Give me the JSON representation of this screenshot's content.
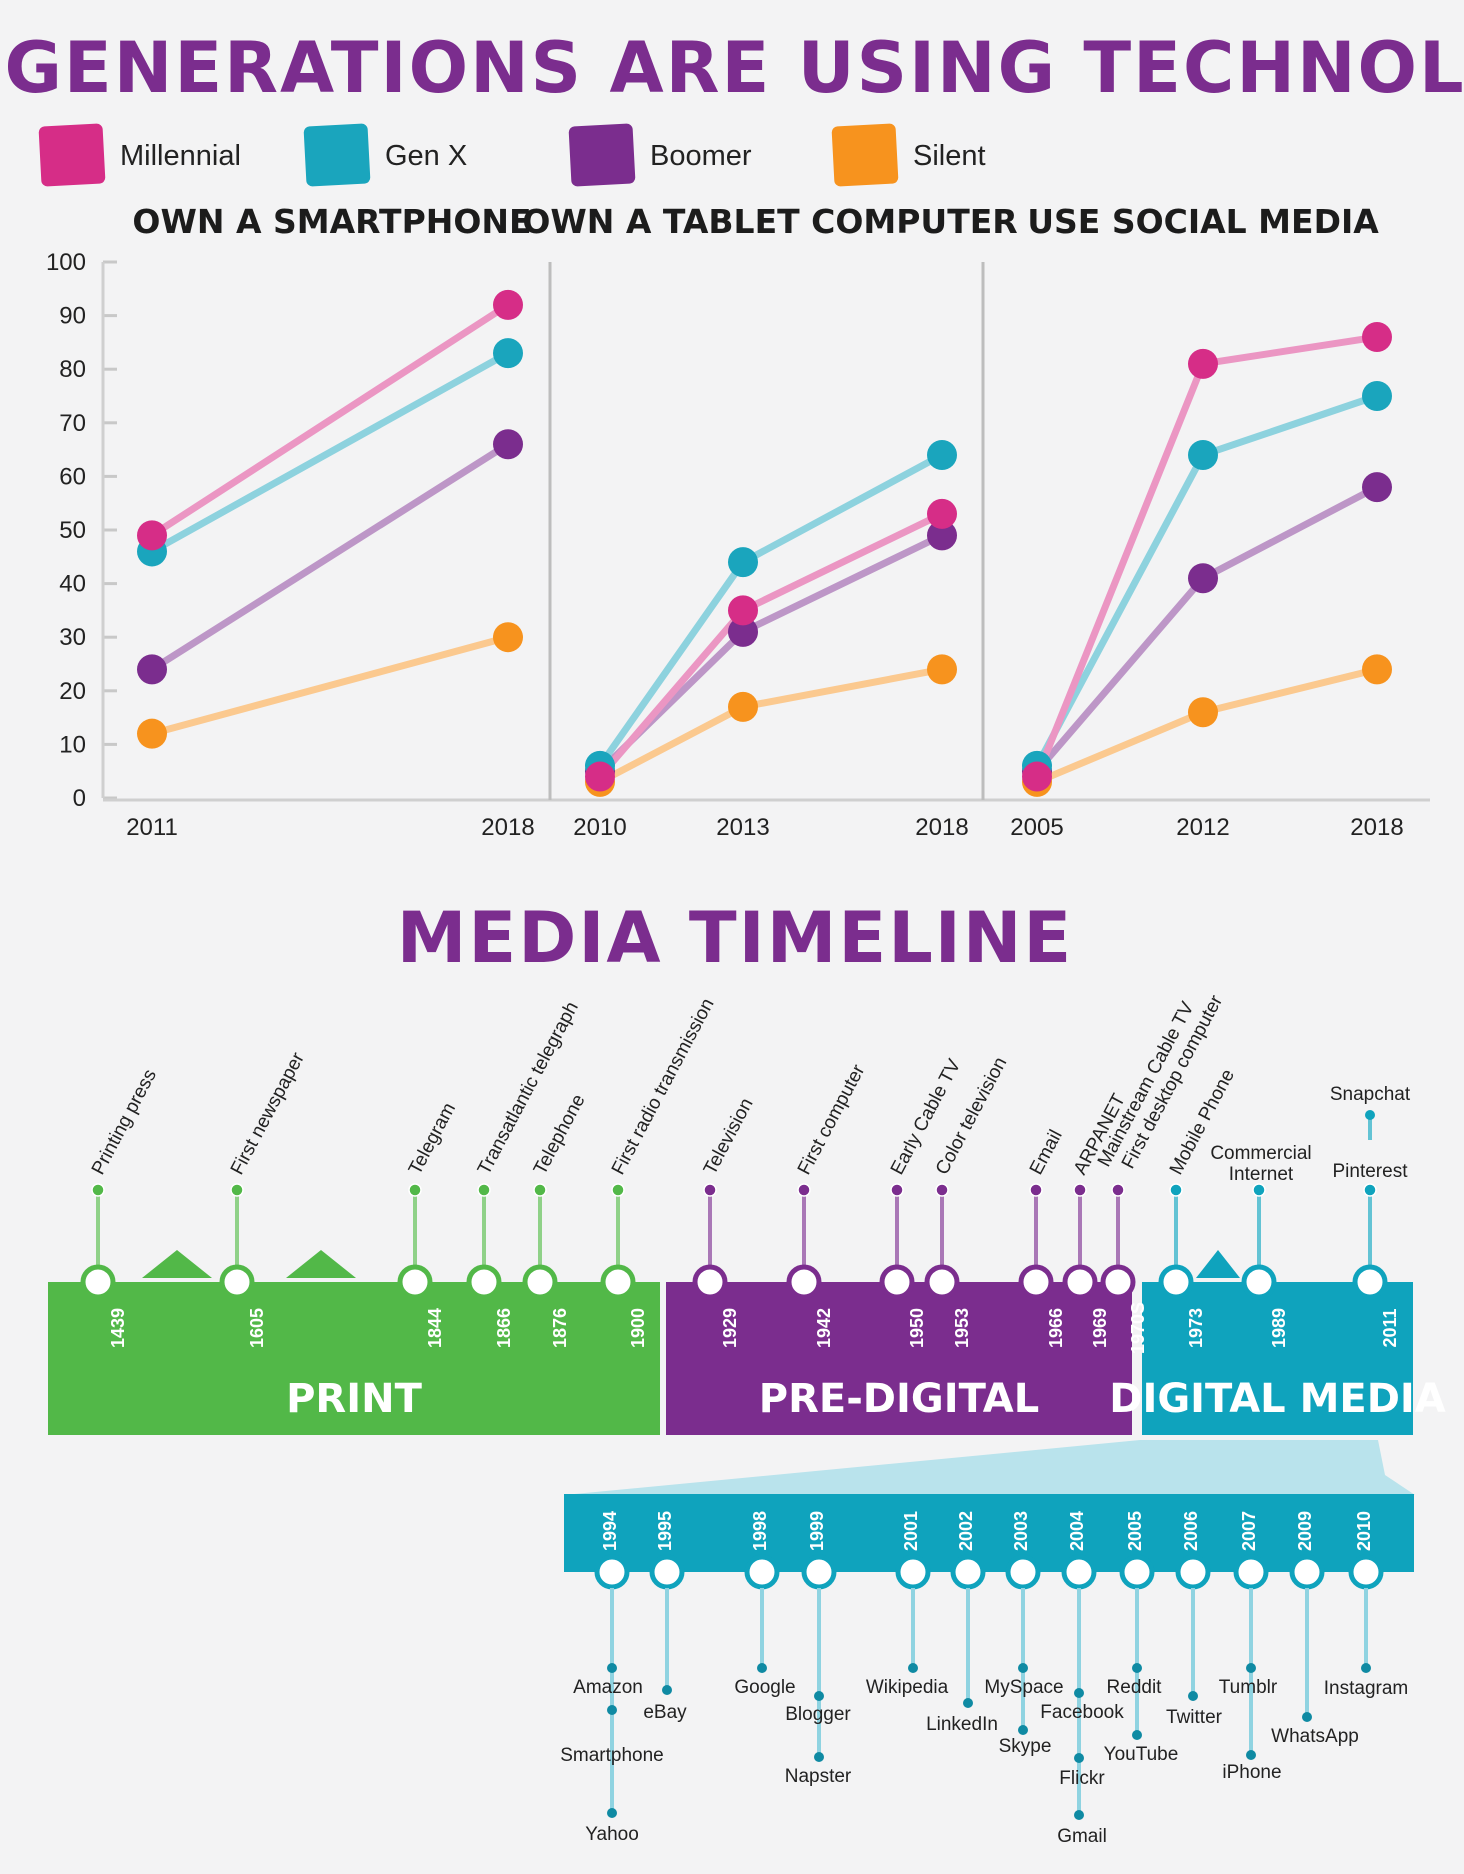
{
  "title": "ALL GENERATIONS ARE USING TECHNOLOGY",
  "legend": [
    {
      "name": "Millennial",
      "color": "#d62d87"
    },
    {
      "name": "Gen X",
      "color": "#1aa5bd"
    },
    {
      "name": "Boomer",
      "color": "#7b2d8e"
    },
    {
      "name": "Silent",
      "color": "#f7931e"
    }
  ],
  "chart_data": [
    {
      "type": "line",
      "title": "OWN A SMARTPHONE",
      "x": [
        "2011",
        "2018"
      ],
      "ylim": [
        0,
        100
      ],
      "yticks": [
        "0",
        "10",
        "20",
        "30",
        "40",
        "50",
        "60",
        "70",
        "80",
        "90",
        "100"
      ],
      "series": [
        {
          "name": "Millennial",
          "values": [
            49,
            92
          ]
        },
        {
          "name": "Gen X",
          "values": [
            46,
            83
          ]
        },
        {
          "name": "Boomer",
          "values": [
            24,
            66
          ]
        },
        {
          "name": "Silent",
          "values": [
            12,
            30
          ]
        }
      ]
    },
    {
      "type": "line",
      "title": "OWN A TABLET COMPUTER",
      "x": [
        "2010",
        "2013",
        "2018"
      ],
      "ylim": [
        0,
        100
      ],
      "series": [
        {
          "name": "Millennial",
          "values": [
            4,
            35,
            53
          ]
        },
        {
          "name": "Gen X",
          "values": [
            6,
            44,
            64
          ]
        },
        {
          "name": "Boomer",
          "values": [
            5,
            31,
            49
          ]
        },
        {
          "name": "Silent",
          "values": [
            3,
            17,
            24
          ]
        }
      ]
    },
    {
      "type": "line",
      "title": "USE SOCIAL MEDIA",
      "x": [
        "2005",
        "2012",
        "2018"
      ],
      "ylim": [
        0,
        100
      ],
      "series": [
        {
          "name": "Millennial",
          "values": [
            4,
            81,
            86
          ]
        },
        {
          "name": "Gen X",
          "values": [
            6,
            64,
            75
          ]
        },
        {
          "name": "Boomer",
          "values": [
            5,
            41,
            58
          ]
        },
        {
          "name": "Silent",
          "values": [
            3,
            16,
            24
          ]
        }
      ]
    }
  ],
  "timeline": {
    "title": "MEDIA TIMELINE",
    "bands": [
      {
        "label": "PRINT",
        "color": "#52b848"
      },
      {
        "label": "PRE-DIGITAL",
        "color": "#7b2d8e"
      },
      {
        "label": "DIGITAL MEDIA",
        "color": "#0fa3bd"
      }
    ],
    "events": [
      {
        "year": "1439",
        "label": "Printing press",
        "band": 0
      },
      {
        "year": "1605",
        "label": "First newspaper",
        "band": 0
      },
      {
        "year": "1844",
        "label": "Telegram",
        "band": 0
      },
      {
        "year": "1866",
        "label": "Transatlantic telegraph",
        "band": 0
      },
      {
        "year": "1876",
        "label": "Telephone",
        "band": 0
      },
      {
        "year": "1900",
        "label": "First radio transmission",
        "band": 0
      },
      {
        "year": "1929",
        "label": "Television",
        "band": 1
      },
      {
        "year": "1942",
        "label": "First computer",
        "band": 1
      },
      {
        "year": "1950",
        "label": "Early Cable TV",
        "band": 1
      },
      {
        "year": "1953",
        "label": "Color television",
        "band": 1
      },
      {
        "year": "1966",
        "label": "Email",
        "band": 1
      },
      {
        "year": "1969",
        "label": "ARPANET",
        "band": 1
      },
      {
        "year": "1970S",
        "label": "Mainstream Cable TV",
        "label2": "First desktop computer",
        "band": 1
      },
      {
        "year": "1973",
        "label": "Mobile Phone",
        "band": 2
      },
      {
        "year": "1989",
        "label": "Commercial",
        "label2": "Internet",
        "band": 2
      },
      {
        "year": "2011",
        "label": "Pinterest",
        "label2": "Snapchat",
        "band": 2
      }
    ],
    "digital_events": [
      {
        "year": "1994",
        "labels": [
          "Amazon",
          "Smartphone",
          "Yahoo"
        ]
      },
      {
        "year": "1995",
        "labels": [
          "eBay"
        ]
      },
      {
        "year": "1998",
        "labels": [
          "Google"
        ]
      },
      {
        "year": "1999",
        "labels": [
          "Blogger",
          "Napster"
        ]
      },
      {
        "year": "2001",
        "labels": [
          "Wikipedia"
        ]
      },
      {
        "year": "2002",
        "labels": [
          "LinkedIn"
        ]
      },
      {
        "year": "2003",
        "labels": [
          "MySpace",
          "Skype"
        ]
      },
      {
        "year": "2004",
        "labels": [
          "Facebook",
          "Flickr",
          "Gmail"
        ]
      },
      {
        "year": "2005",
        "labels": [
          "Reddit",
          "YouTube"
        ]
      },
      {
        "year": "2006",
        "labels": [
          "Twitter"
        ]
      },
      {
        "year": "2007",
        "labels": [
          "Tumblr",
          "iPhone"
        ]
      },
      {
        "year": "2009",
        "labels": [
          "WhatsApp"
        ]
      },
      {
        "year": "2010",
        "labels": [
          "Instagram"
        ]
      }
    ]
  }
}
